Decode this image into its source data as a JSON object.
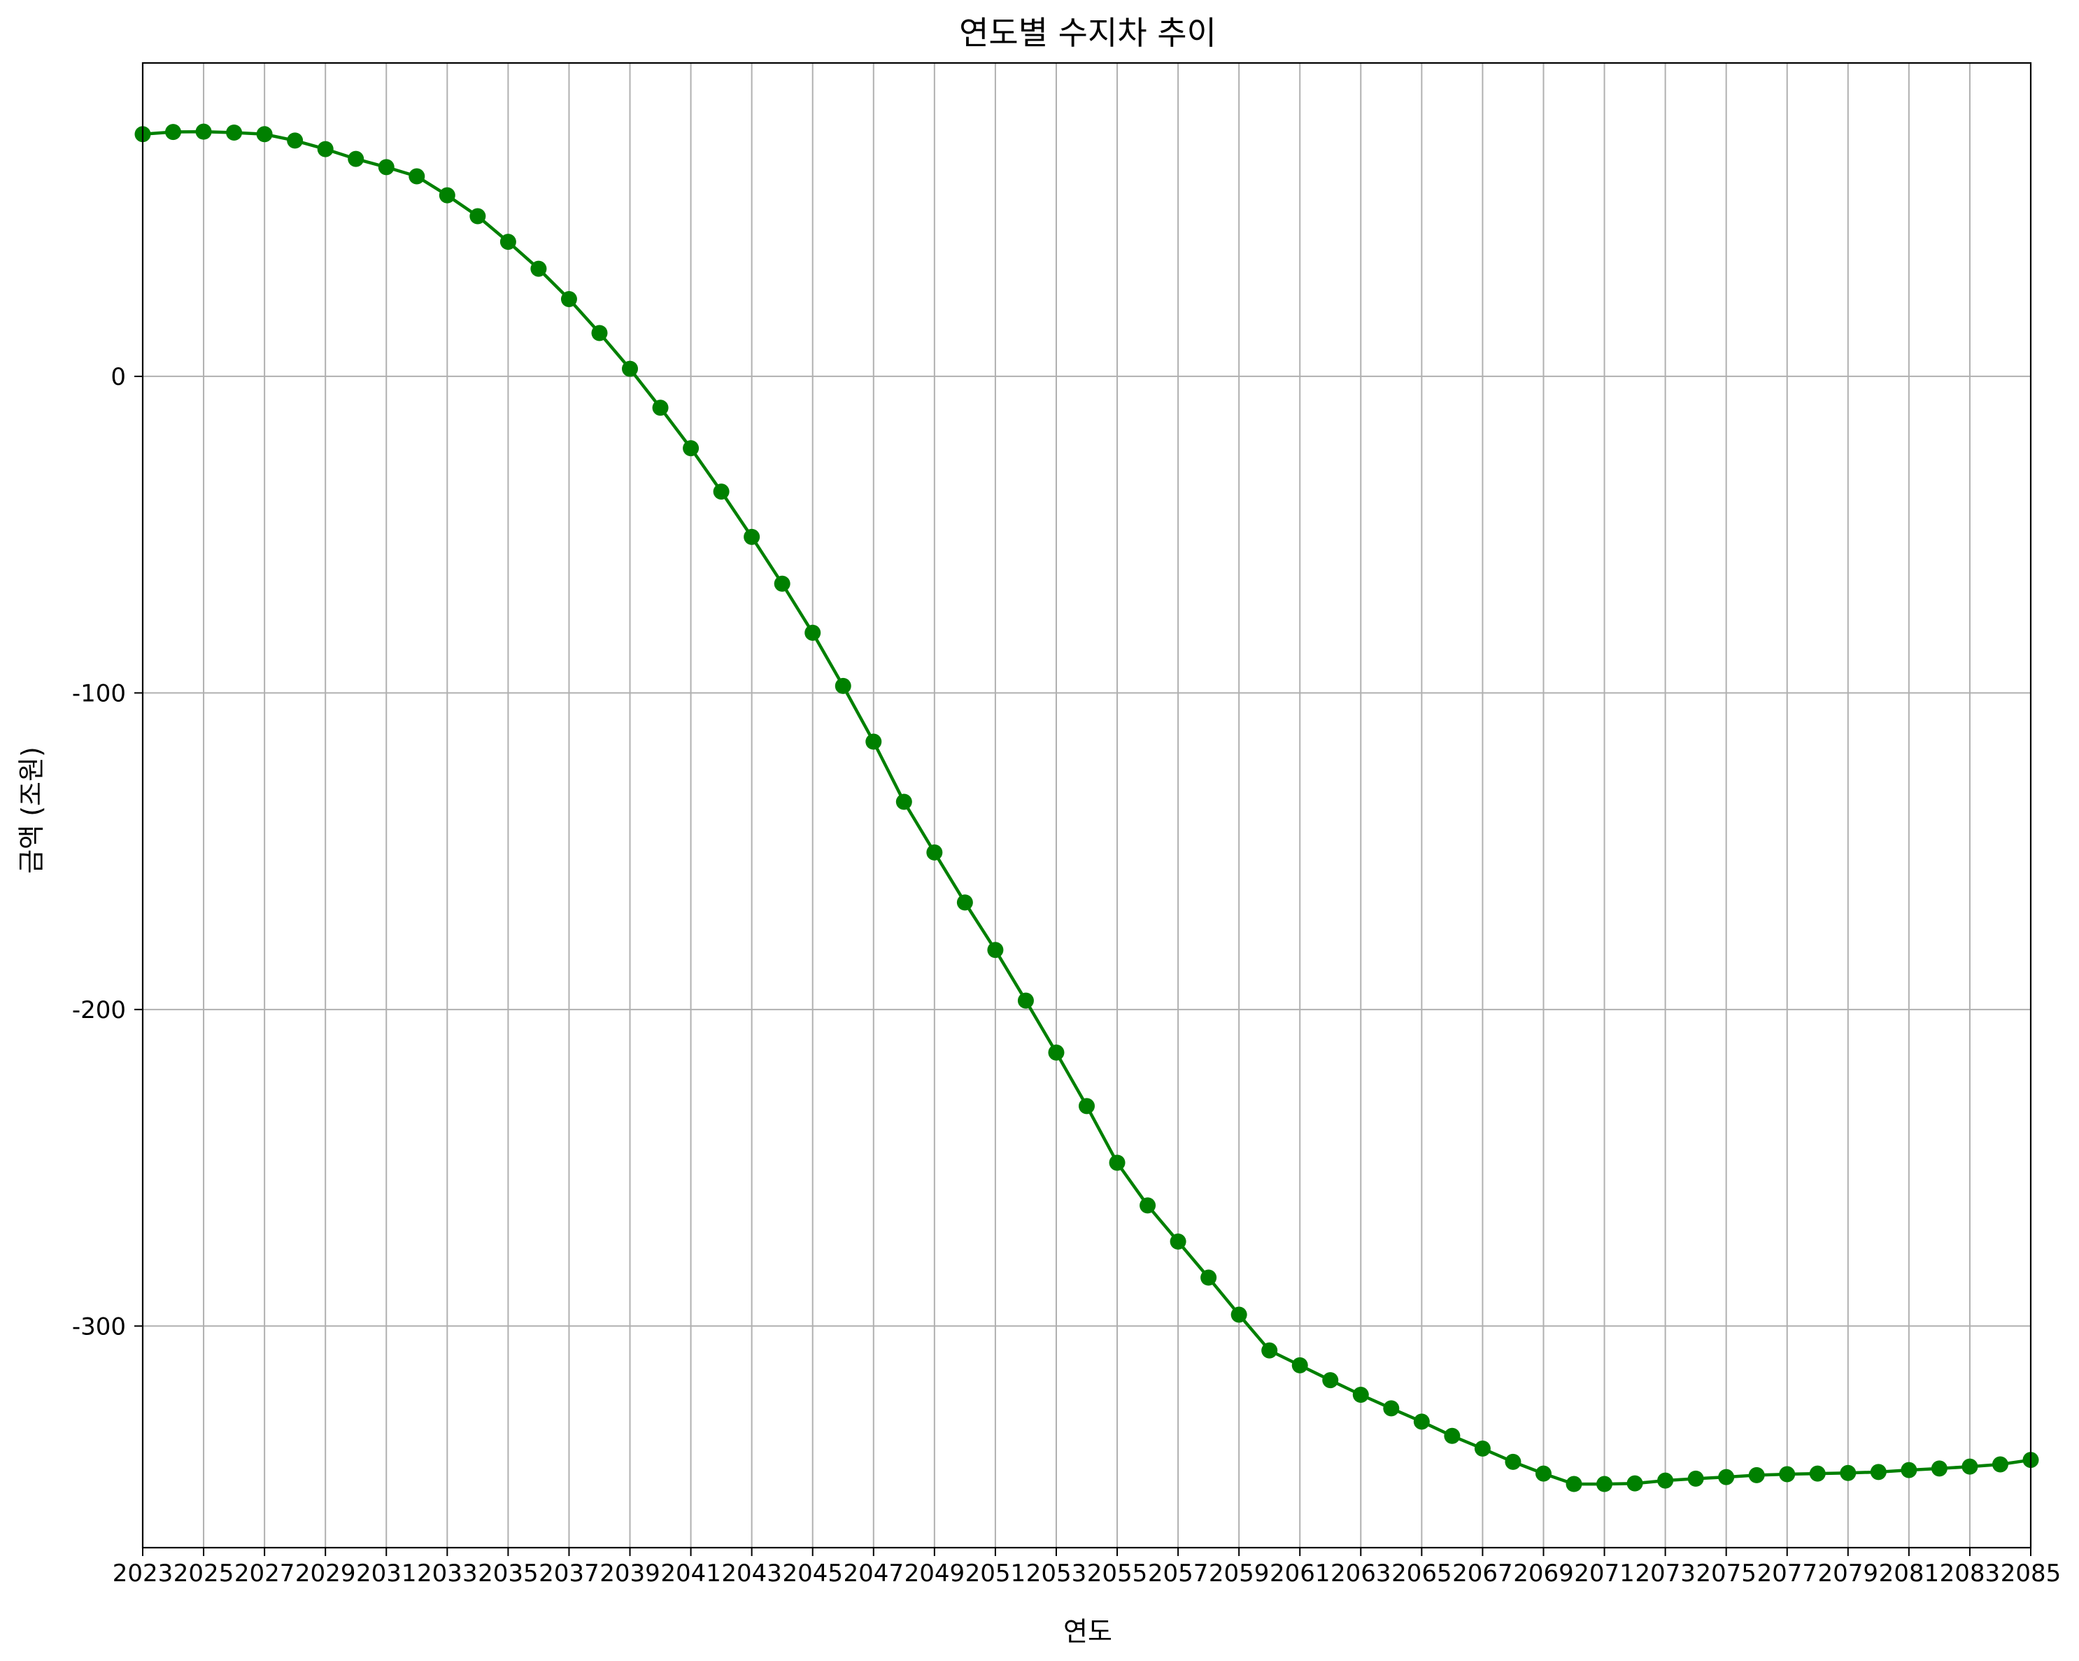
{
  "chart_data": {
    "type": "line",
    "title": "연도별 수지차 추이",
    "xlabel": "연도",
    "ylabel": "금액 (조원)",
    "xlim": [
      2023,
      2085
    ],
    "ylim": [
      -370,
      99
    ],
    "x_ticks": [
      2023,
      2025,
      2027,
      2029,
      2031,
      2033,
      2035,
      2037,
      2039,
      2041,
      2043,
      2045,
      2047,
      2049,
      2051,
      2053,
      2055,
      2057,
      2059,
      2061,
      2063,
      2065,
      2067,
      2069,
      2071,
      2073,
      2075,
      2077,
      2079,
      2081,
      2083,
      2085
    ],
    "y_ticks": [
      0,
      -100,
      -200,
      -300
    ],
    "grid": true,
    "series": [
      {
        "color": "#008000",
        "marker": "circle",
        "x": [
          2023,
          2024,
          2025,
          2026,
          2027,
          2028,
          2029,
          2030,
          2031,
          2032,
          2033,
          2034,
          2035,
          2036,
          2037,
          2038,
          2039,
          2040,
          2041,
          2042,
          2043,
          2044,
          2045,
          2046,
          2047,
          2048,
          2049,
          2050,
          2051,
          2052,
          2053,
          2054,
          2055,
          2056,
          2057,
          2058,
          2059,
          2060,
          2061,
          2062,
          2063,
          2064,
          2065,
          2066,
          2067,
          2068,
          2069,
          2070,
          2071,
          2072,
          2073,
          2074,
          2075,
          2076,
          2077,
          2078,
          2079,
          2080,
          2081,
          2082,
          2083,
          2084,
          2085
        ],
        "values": [
          76.5,
          77.2,
          77.3,
          77.0,
          76.5,
          74.5,
          71.8,
          68.7,
          66.1,
          63.2,
          57.2,
          50.6,
          42.5,
          34.0,
          24.4,
          13.7,
          2.4,
          -9.9,
          -22.7,
          -36.4,
          -50.7,
          -65.5,
          -81.0,
          -97.8,
          -115.4,
          -134.4,
          -150.4,
          -166.2,
          -181.2,
          -197.2,
          -213.6,
          -230.5,
          -248.4,
          -261.9,
          -273.3,
          -284.7,
          -296.4,
          -307.7,
          -312.4,
          -317.1,
          -321.7,
          -326.0,
          -330.2,
          -334.7,
          -338.7,
          -342.9,
          -346.6,
          -349.9,
          -349.9,
          -349.7,
          -348.8,
          -348.2,
          -347.7,
          -347.1,
          -346.8,
          -346.6,
          -346.4,
          -346.1,
          -345.5,
          -345.0,
          -344.4,
          -343.7,
          -342.3
        ]
      }
    ]
  }
}
